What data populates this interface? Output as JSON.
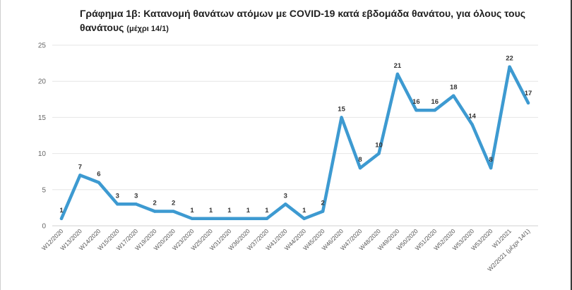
{
  "title": {
    "main": "Γράφημα 1β: Κατανομή θανάτων ατόμων με COVID-19 κατά εβδομάδα θανάτου, για όλους τους θανάτους",
    "sub": "(μέχρι 14/1)"
  },
  "chart_data": {
    "type": "line",
    "title": "Γράφημα 1β: Κατανομή θανάτων ατόμων με COVID-19 κατά εβδομάδα θανάτου, για όλους τους θανάτους (μέχρι 14/1)",
    "categories": [
      "W12/2020",
      "W13/2020",
      "W14/2020",
      "W15/2020",
      "W17/2020",
      "W19/2020",
      "W20/2020",
      "W23/2020",
      "W25/2020",
      "W31/2020",
      "W36/2020",
      "W37/2020",
      "W41/2020",
      "W44/2020",
      "W45/2020",
      "W46/2020",
      "W47/2020",
      "W48/2020",
      "W49/2020",
      "W50/2020",
      "W51/2020",
      "W52/2020",
      "W53/2020",
      "W53/2020",
      "W1/2021",
      "W2/2021 (μέχρι 14/1)"
    ],
    "series": [
      {
        "values": [
          1,
          7,
          6,
          3,
          3,
          2,
          2,
          1,
          1,
          1,
          1,
          1,
          3,
          1,
          2,
          15,
          8,
          10,
          21,
          16,
          16,
          18,
          14,
          8,
          22,
          17
        ]
      }
    ],
    "ylim": [
      0,
      25
    ],
    "yticks": [
      0,
      5,
      10,
      15,
      20,
      25
    ],
    "grid": true,
    "line_color": "#3d9ad1"
  }
}
